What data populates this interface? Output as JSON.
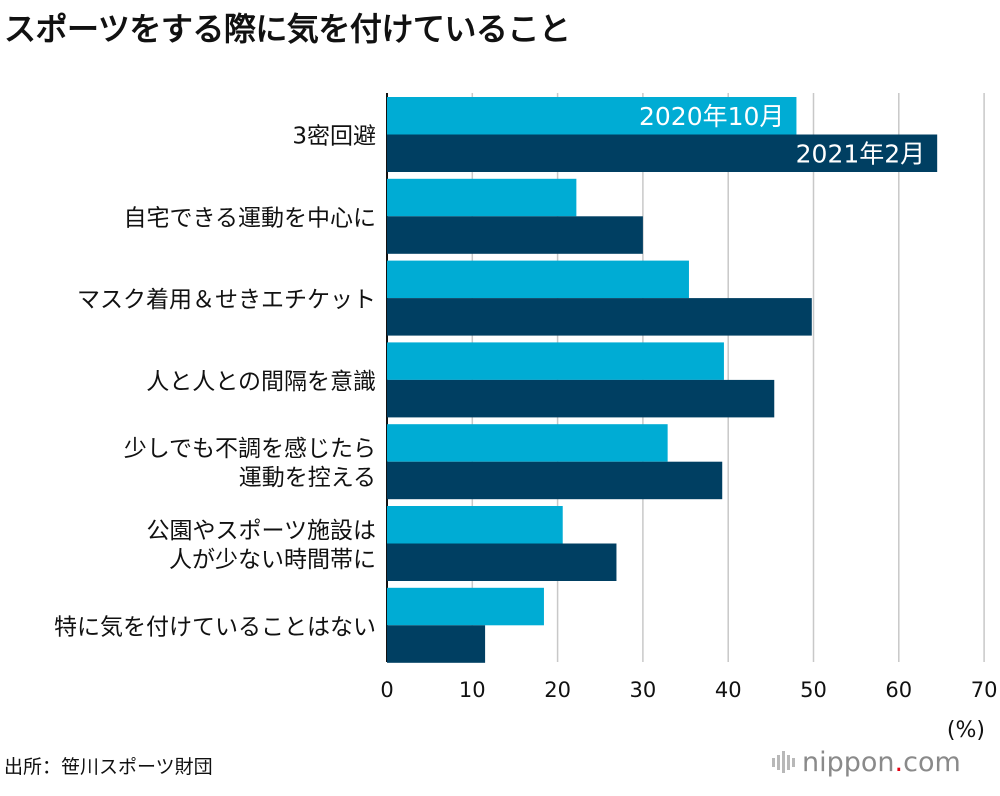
{
  "title": "スポーツをする際に気を付けていること",
  "source": "出所：笹川スポーツ財団",
  "logo": {
    "name": "nippon",
    "dot": ".",
    "tld": "com"
  },
  "chart_data": {
    "type": "bar",
    "orientation": "horizontal",
    "categories": [
      [
        "3密回避"
      ],
      [
        "自宅できる運動を中心に"
      ],
      [
        "マスク着用＆せきエチケット"
      ],
      [
        "人と人との間隔を意識"
      ],
      [
        "少しでも不調を感じたら",
        "運動を控える"
      ],
      [
        "公園やスポーツ施設は",
        "人が少ない時間帯に"
      ],
      [
        "特に気を付けていることはない"
      ]
    ],
    "series": [
      {
        "name": "2020年10月",
        "color": "#00acd4",
        "values": [
          48.0,
          22.2,
          35.4,
          39.5,
          32.9,
          20.6,
          18.4
        ]
      },
      {
        "name": "2021年2月",
        "color": "#003f62",
        "values": [
          64.5,
          30.0,
          49.8,
          45.4,
          39.3,
          26.9,
          11.5
        ]
      }
    ],
    "xlim": [
      0,
      70
    ],
    "xticks": [
      0,
      10,
      20,
      30,
      40,
      50,
      60,
      70
    ],
    "unit": "(%)",
    "grid": true,
    "legend": "inside-bars"
  }
}
